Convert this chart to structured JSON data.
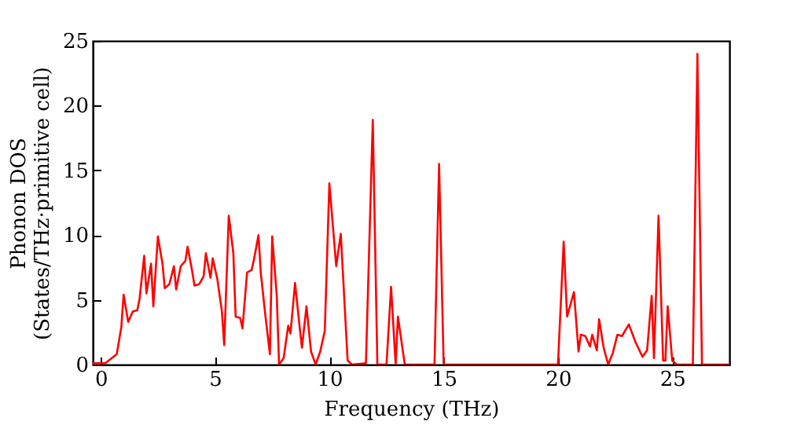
{
  "chart_data": {
    "type": "line",
    "xlabel": "Frequency (THz)",
    "ylabel": "Phonon DOS\n(States/THz·primitive cell)",
    "xlim": [
      -0.35,
      27.5
    ],
    "ylim": [
      0,
      25
    ],
    "xticks": [
      0,
      5,
      10,
      15,
      20,
      25
    ],
    "yticks": [
      0,
      5,
      10,
      15,
      20,
      25
    ],
    "grid": false,
    "x": [
      -0.35,
      0.2,
      0.7,
      0.9,
      1.0,
      1.2,
      1.4,
      1.6,
      1.7,
      1.9,
      2.0,
      2.2,
      2.3,
      2.5,
      2.7,
      2.8,
      3.0,
      3.2,
      3.3,
      3.5,
      3.7,
      3.8,
      4.0,
      4.1,
      4.3,
      4.5,
      4.6,
      4.8,
      4.9,
      5.1,
      5.3,
      5.4,
      5.6,
      5.8,
      5.9,
      6.1,
      6.2,
      6.4,
      6.6,
      6.7,
      6.9,
      7.0,
      7.2,
      7.4,
      7.5,
      7.7,
      7.8,
      8.0,
      8.2,
      8.3,
      8.5,
      8.7,
      8.8,
      9.0,
      9.2,
      9.4,
      9.6,
      9.8,
      10.0,
      10.3,
      10.5,
      10.8,
      11.0,
      11.6,
      11.9,
      12.1,
      12.5,
      12.7,
      12.9,
      13.0,
      13.3,
      14.6,
      14.8,
      15.0,
      20.0,
      20.25,
      20.4,
      20.7,
      20.9,
      21.0,
      21.2,
      21.4,
      21.5,
      21.7,
      21.8,
      22.0,
      22.2,
      22.4,
      22.6,
      22.8,
      23.1,
      23.4,
      23.7,
      23.9,
      24.1,
      24.2,
      24.4,
      24.6,
      24.7,
      24.8,
      25.0,
      25.2,
      25.9,
      26.1,
      26.3,
      27.5
    ],
    "series": [
      {
        "color": "#ff0000",
        "values": [
          0.1,
          0.1,
          0.8,
          2.9,
          5.4,
          3.3,
          4.1,
          4.2,
          5.1,
          8.4,
          5.5,
          7.8,
          4.5,
          9.9,
          7.8,
          5.9,
          6.2,
          7.6,
          5.8,
          7.6,
          8.0,
          9.1,
          7.2,
          6.1,
          6.2,
          6.8,
          8.6,
          6.7,
          8.2,
          6.6,
          4.1,
          1.5,
          11.5,
          8.6,
          3.7,
          3.6,
          2.8,
          7.1,
          7.3,
          8.1,
          10.0,
          7.1,
          3.8,
          0.8,
          9.9,
          5.3,
          0.0,
          0.5,
          3.0,
          2.4,
          6.3,
          2.9,
          1.3,
          4.5,
          1.0,
          0.0,
          1.0,
          2.6,
          14.0,
          7.6,
          10.1,
          0.3,
          0,
          0.1,
          18.9,
          0,
          0,
          6.0,
          0,
          3.7,
          0,
          0,
          15.5,
          0,
          0,
          9.5,
          3.7,
          5.6,
          1.0,
          2.3,
          2.2,
          1.4,
          2.3,
          1.1,
          3.5,
          1.3,
          0,
          0.9,
          2.3,
          2.2,
          3.1,
          1.7,
          0.6,
          1.1,
          5.3,
          0.5,
          11.5,
          0.3,
          0.3,
          4.5,
          0.3,
          0,
          0,
          24.0,
          0,
          0
        ]
      }
    ]
  }
}
